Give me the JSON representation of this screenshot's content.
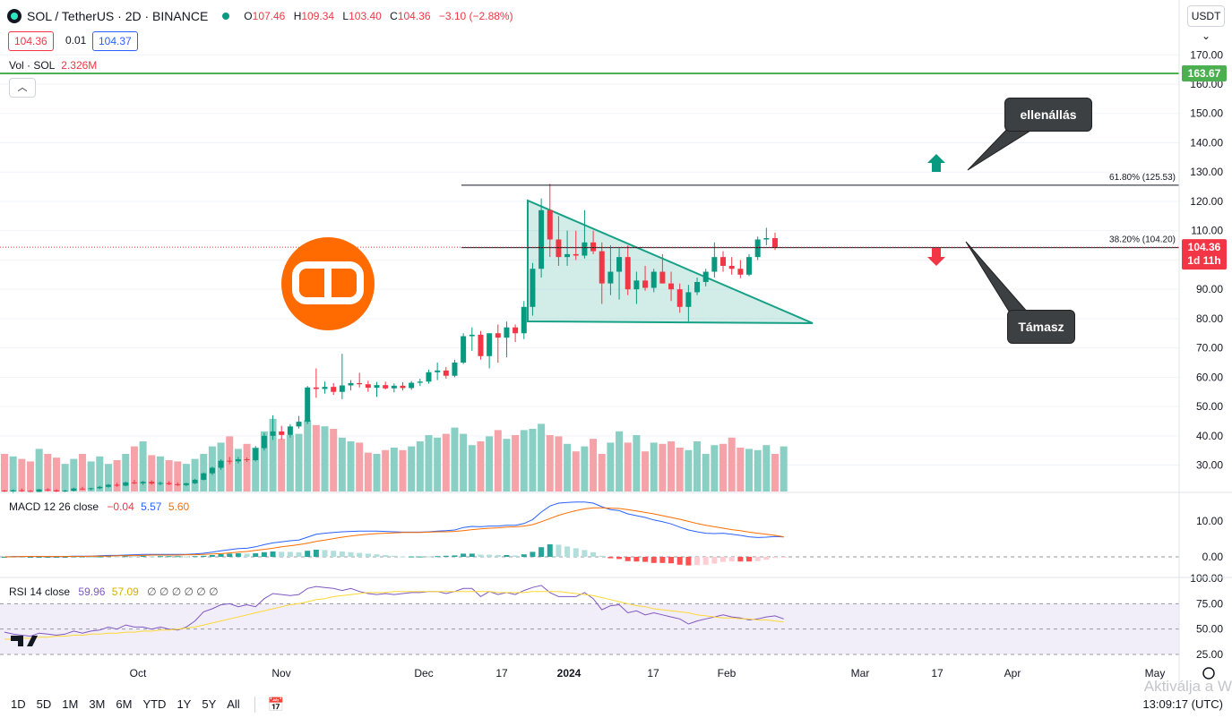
{
  "header": {
    "symbol": "SOL / TetherUS · 2D · BINANCE",
    "o_label": "O",
    "o_value": "107.46",
    "h_label": "H",
    "h_value": "109.34",
    "l_label": "L",
    "l_value": "103.40",
    "c_label": "C",
    "c_value": "104.36",
    "change": "−3.10 (−2.88%)",
    "bid": "104.36",
    "spread": "0.01",
    "ask": "104.37",
    "currency_button": "USDT",
    "vol_label": "Vol · SOL",
    "vol_value": "2.326M"
  },
  "macd_legend": {
    "label": "MACD 12 26 close",
    "hist": "−0.04",
    "macd": "5.57",
    "signal": "5.60"
  },
  "rsi_legend": {
    "label": "RSI 14 close",
    "rsi": "59.96",
    "ma": "57.09",
    "extra": "∅ ∅ ∅ ∅ ∅ ∅"
  },
  "annotations": {
    "resistance": "ellenállás",
    "support": "Támasz",
    "fib_618": "61.80% (125.53)",
    "fib_382": "38.20% (104.20)",
    "h_line_label": "163.67",
    "last_price": "104.36",
    "countdown": "1d 11h"
  },
  "bottom_bar": {
    "timeframes": [
      "1D",
      "5D",
      "1M",
      "3M",
      "6M",
      "YTD",
      "1Y",
      "5Y",
      "All"
    ],
    "clock": "13:09:17 (UTC)",
    "watermark": "Aktiválja a W"
  },
  "colors": {
    "up": "#089981",
    "down": "#f23645",
    "macd": "#2962ff",
    "signal": "#ff6d00",
    "rsi": "#7e57c2",
    "rsi_ma": "#fdd835",
    "hline": "#4caf50"
  },
  "chart_data": [
    {
      "type": "candlestick",
      "title": "SOL / TetherUS · 2D · BINANCE",
      "y_axis_ticks": [
        170,
        160,
        150,
        140,
        130,
        120,
        110,
        100,
        90,
        80,
        70,
        60,
        50,
        40,
        30
      ],
      "ylim": [
        22,
        173
      ],
      "x_tick_labels": [
        "Oct",
        "Nov",
        "Dec",
        "17",
        "2024",
        "17",
        "Feb",
        "Mar",
        "17",
        "Apr",
        "May"
      ],
      "candles": [
        {
          "o": 21.3,
          "h": 21.6,
          "l": 20.6,
          "c": 21.0
        },
        {
          "o": 21.0,
          "h": 21.7,
          "l": 20.4,
          "c": 21.4
        },
        {
          "o": 21.4,
          "h": 22.0,
          "l": 20.9,
          "c": 21.2
        },
        {
          "o": 21.2,
          "h": 21.5,
          "l": 20.5,
          "c": 20.9
        },
        {
          "o": 20.9,
          "h": 21.9,
          "l": 20.7,
          "c": 21.7
        },
        {
          "o": 21.7,
          "h": 22.1,
          "l": 21.1,
          "c": 21.4
        },
        {
          "o": 21.4,
          "h": 21.8,
          "l": 20.8,
          "c": 21.0
        },
        {
          "o": 21.0,
          "h": 21.6,
          "l": 20.7,
          "c": 21.3
        },
        {
          "o": 21.3,
          "h": 22.3,
          "l": 21.0,
          "c": 22.0
        },
        {
          "o": 22.0,
          "h": 22.6,
          "l": 21.5,
          "c": 21.8
        },
        {
          "o": 21.8,
          "h": 22.3,
          "l": 21.4,
          "c": 22.1
        },
        {
          "o": 22.1,
          "h": 22.9,
          "l": 21.8,
          "c": 22.6
        },
        {
          "o": 22.6,
          "h": 23.6,
          "l": 22.3,
          "c": 23.3
        },
        {
          "o": 23.3,
          "h": 24.0,
          "l": 22.6,
          "c": 23.0
        },
        {
          "o": 23.0,
          "h": 24.4,
          "l": 22.8,
          "c": 24.1
        },
        {
          "o": 24.1,
          "h": 25.0,
          "l": 23.5,
          "c": 23.8
        },
        {
          "o": 23.8,
          "h": 24.6,
          "l": 23.2,
          "c": 24.3
        },
        {
          "o": 24.3,
          "h": 24.8,
          "l": 23.3,
          "c": 23.7
        },
        {
          "o": 23.7,
          "h": 24.4,
          "l": 23.1,
          "c": 23.9
        },
        {
          "o": 23.9,
          "h": 24.5,
          "l": 23.2,
          "c": 23.5
        },
        {
          "o": 23.5,
          "h": 24.1,
          "l": 22.9,
          "c": 23.2
        },
        {
          "o": 23.2,
          "h": 24.0,
          "l": 22.8,
          "c": 23.8
        },
        {
          "o": 23.8,
          "h": 25.3,
          "l": 23.5,
          "c": 25.0
        },
        {
          "o": 25.0,
          "h": 27.5,
          "l": 24.8,
          "c": 27.2
        },
        {
          "o": 27.2,
          "h": 29.5,
          "l": 26.6,
          "c": 29.1
        },
        {
          "o": 29.1,
          "h": 32.0,
          "l": 28.4,
          "c": 31.5
        },
        {
          "o": 31.5,
          "h": 32.8,
          "l": 30.3,
          "c": 31.3
        },
        {
          "o": 31.3,
          "h": 32.8,
          "l": 30.6,
          "c": 32.0
        },
        {
          "o": 32.0,
          "h": 32.6,
          "l": 31.1,
          "c": 31.7
        },
        {
          "o": 31.7,
          "h": 36.5,
          "l": 31.3,
          "c": 35.8
        },
        {
          "o": 35.8,
          "h": 41.0,
          "l": 35.0,
          "c": 40.0
        },
        {
          "o": 40.0,
          "h": 47.0,
          "l": 38.6,
          "c": 41.5
        },
        {
          "o": 41.5,
          "h": 43.4,
          "l": 38.7,
          "c": 40.3
        },
        {
          "o": 40.3,
          "h": 44.0,
          "l": 39.4,
          "c": 43.2
        },
        {
          "o": 43.2,
          "h": 46.8,
          "l": 42.5,
          "c": 44.8
        },
        {
          "o": 44.8,
          "h": 57.0,
          "l": 44.0,
          "c": 56.5
        },
        {
          "o": 56.5,
          "h": 63.0,
          "l": 53.0,
          "c": 56.0
        },
        {
          "o": 56.0,
          "h": 58.5,
          "l": 54.4,
          "c": 56.7
        },
        {
          "o": 56.7,
          "h": 58.0,
          "l": 54.0,
          "c": 55.0
        },
        {
          "o": 55.0,
          "h": 68.0,
          "l": 52.5,
          "c": 57.2
        },
        {
          "o": 57.2,
          "h": 59.0,
          "l": 55.5,
          "c": 58.0
        },
        {
          "o": 58.0,
          "h": 61.5,
          "l": 56.5,
          "c": 57.6
        },
        {
          "o": 57.6,
          "h": 58.8,
          "l": 55.0,
          "c": 56.4
        },
        {
          "o": 56.4,
          "h": 58.4,
          "l": 53.3,
          "c": 57.3
        },
        {
          "o": 57.3,
          "h": 58.5,
          "l": 55.8,
          "c": 56.2
        },
        {
          "o": 56.2,
          "h": 57.9,
          "l": 54.8,
          "c": 57.1
        },
        {
          "o": 57.1,
          "h": 58.3,
          "l": 55.5,
          "c": 56.3
        },
        {
          "o": 56.3,
          "h": 58.7,
          "l": 55.7,
          "c": 58.1
        },
        {
          "o": 58.1,
          "h": 59.5,
          "l": 57.0,
          "c": 58.5
        },
        {
          "o": 58.5,
          "h": 62.6,
          "l": 57.8,
          "c": 61.7
        },
        {
          "o": 61.7,
          "h": 65.0,
          "l": 59.0,
          "c": 62.3
        },
        {
          "o": 62.3,
          "h": 63.5,
          "l": 59.5,
          "c": 60.5
        },
        {
          "o": 60.5,
          "h": 66.0,
          "l": 60.0,
          "c": 65.0
        },
        {
          "o": 65.0,
          "h": 75.0,
          "l": 64.5,
          "c": 74.0
        },
        {
          "o": 74.0,
          "h": 77.0,
          "l": 69.0,
          "c": 74.5
        },
        {
          "o": 74.5,
          "h": 75.8,
          "l": 66.0,
          "c": 67.2
        },
        {
          "o": 67.2,
          "h": 75.0,
          "l": 63.0,
          "c": 75.0
        },
        {
          "o": 75.0,
          "h": 78.0,
          "l": 65.0,
          "c": 73.5
        },
        {
          "o": 73.5,
          "h": 79.0,
          "l": 66.8,
          "c": 77.0
        },
        {
          "o": 77.0,
          "h": 78.0,
          "l": 72.0,
          "c": 75.0
        },
        {
          "o": 75.0,
          "h": 86.0,
          "l": 73.0,
          "c": 84.0
        },
        {
          "o": 84.0,
          "h": 99.0,
          "l": 81.0,
          "c": 97.0
        },
        {
          "o": 97.0,
          "h": 121.0,
          "l": 94.0,
          "c": 117.0
        },
        {
          "o": 117.0,
          "h": 126.0,
          "l": 101.0,
          "c": 107.0
        },
        {
          "o": 107.0,
          "h": 115.0,
          "l": 98.0,
          "c": 101.0
        },
        {
          "o": 101.0,
          "h": 110.0,
          "l": 98.0,
          "c": 102.0
        },
        {
          "o": 102.0,
          "h": 110.0,
          "l": 100.0,
          "c": 101.5
        },
        {
          "o": 101.5,
          "h": 117.0,
          "l": 100.5,
          "c": 106.0
        },
        {
          "o": 106.0,
          "h": 110.0,
          "l": 102.0,
          "c": 103.0
        },
        {
          "o": 103.0,
          "h": 106.0,
          "l": 85.0,
          "c": 92.0
        },
        {
          "o": 92.0,
          "h": 105.0,
          "l": 88.0,
          "c": 96.0
        },
        {
          "o": 96.0,
          "h": 104.0,
          "l": 86.5,
          "c": 101.0
        },
        {
          "o": 101.0,
          "h": 105.0,
          "l": 88.0,
          "c": 90.0
        },
        {
          "o": 90.0,
          "h": 96.0,
          "l": 85.0,
          "c": 93.0
        },
        {
          "o": 93.0,
          "h": 98.0,
          "l": 89.5,
          "c": 90.5
        },
        {
          "o": 90.5,
          "h": 97.0,
          "l": 89.0,
          "c": 96.0
        },
        {
          "o": 96.0,
          "h": 102.0,
          "l": 93.0,
          "c": 92.0
        },
        {
          "o": 92.0,
          "h": 96.0,
          "l": 86.0,
          "c": 90.0
        },
        {
          "o": 90.0,
          "h": 92.0,
          "l": 82.0,
          "c": 84.0
        },
        {
          "o": 84.0,
          "h": 91.5,
          "l": 79.0,
          "c": 89.0
        },
        {
          "o": 89.0,
          "h": 94.0,
          "l": 88.0,
          "c": 92.5
        },
        {
          "o": 92.5,
          "h": 97.0,
          "l": 91.0,
          "c": 96.0
        },
        {
          "o": 96.0,
          "h": 106.0,
          "l": 94.0,
          "c": 101.0
        },
        {
          "o": 101.0,
          "h": 103.0,
          "l": 96.0,
          "c": 98.0
        },
        {
          "o": 98.0,
          "h": 101.0,
          "l": 95.0,
          "c": 97.0
        },
        {
          "o": 97.0,
          "h": 100.0,
          "l": 93.8,
          "c": 95.0
        },
        {
          "o": 95.0,
          "h": 102.0,
          "l": 94.5,
          "c": 101.0
        },
        {
          "o": 101.0,
          "h": 108.0,
          "l": 100.0,
          "c": 107.0
        },
        {
          "o": 107.0,
          "h": 111.0,
          "l": 105.0,
          "c": 107.46
        },
        {
          "o": 107.46,
          "h": 109.34,
          "l": 103.4,
          "c": 104.36
        }
      ]
    },
    {
      "type": "bar",
      "title": "Vol · SOL",
      "values": [
        30,
        28,
        26,
        24,
        34,
        30,
        27,
        22,
        26,
        30,
        24,
        28,
        22,
        25,
        30,
        36,
        40,
        29,
        28,
        25,
        24,
        22,
        26,
        30,
        36,
        39,
        44,
        34,
        38,
        35,
        48,
        58,
        42,
        45,
        46,
        57,
        53,
        52,
        50,
        43,
        40,
        39,
        31,
        30,
        33,
        35,
        33,
        36,
        40,
        45,
        43,
        46,
        51,
        46,
        37,
        40,
        44,
        49,
        42,
        45,
        49,
        50,
        54,
        45,
        44,
        38,
        32,
        36,
        42,
        30,
        39,
        48,
        39,
        45,
        32,
        39,
        38,
        40,
        35,
        33,
        40,
        30,
        37,
        38,
        43,
        35,
        34,
        33,
        37,
        30,
        36
      ],
      "ylim": [
        0,
        100
      ]
    },
    {
      "type": "line",
      "title": "MACD 12 26 close",
      "y_axis_ticks": [
        10.0,
        0.0
      ],
      "series": [
        {
          "name": "MACD",
          "values": [
            0,
            0.1,
            0.1,
            0.1,
            0.1,
            0.1,
            0.1,
            0.1,
            0.2,
            0.2,
            0.2,
            0.3,
            0.4,
            0.4,
            0.5,
            0.6,
            0.7,
            0.7,
            0.7,
            0.7,
            0.7,
            0.7,
            0.8,
            1.0,
            1.3,
            1.7,
            2.0,
            2.3,
            2.4,
            2.8,
            3.4,
            3.9,
            4.2,
            4.5,
            4.7,
            5.5,
            6.3,
            6.6,
            6.8,
            7.0,
            7.1,
            7.2,
            7.2,
            7.2,
            7.1,
            7.0,
            6.9,
            6.9,
            6.9,
            7.0,
            7.2,
            7.3,
            7.5,
            8.2,
            8.5,
            8.4,
            8.6,
            8.6,
            8.8,
            8.8,
            9.3,
            10.4,
            12.5,
            14.2,
            15.0,
            15.2,
            15.3,
            15.3,
            15.0,
            14.0,
            13.2,
            12.9,
            12.0,
            11.5,
            11.0,
            10.3,
            9.8,
            9.2,
            8.3,
            7.5,
            7.0,
            6.6,
            6.5,
            6.6,
            6.3,
            6.0,
            5.6,
            5.4,
            5.5,
            5.7,
            5.57
          ]
        },
        {
          "name": "Signal",
          "values": [
            0,
            0,
            0.1,
            0.1,
            0.1,
            0.1,
            0.1,
            0.1,
            0.1,
            0.1,
            0.2,
            0.2,
            0.2,
            0.3,
            0.3,
            0.4,
            0.4,
            0.5,
            0.5,
            0.5,
            0.5,
            0.6,
            0.6,
            0.7,
            0.8,
            0.9,
            1.1,
            1.3,
            1.5,
            1.8,
            2.1,
            2.4,
            2.8,
            3.1,
            3.4,
            3.8,
            4.3,
            4.7,
            5.1,
            5.5,
            5.8,
            6.1,
            6.3,
            6.5,
            6.6,
            6.7,
            6.8,
            6.8,
            6.8,
            6.9,
            7.0,
            7.0,
            7.1,
            7.3,
            7.6,
            7.8,
            8.0,
            8.1,
            8.3,
            8.4,
            8.6,
            9.0,
            9.8,
            10.7,
            11.6,
            12.3,
            12.9,
            13.4,
            13.7,
            13.7,
            13.6,
            13.5,
            13.2,
            12.8,
            12.4,
            12.0,
            11.5,
            11.0,
            10.5,
            9.9,
            9.3,
            8.8,
            8.4,
            8.0,
            7.6,
            7.3,
            6.9,
            6.6,
            6.3,
            6.0,
            5.6
          ]
        }
      ]
    },
    {
      "type": "line",
      "title": "RSI 14 close",
      "y_axis_ticks": [
        100.0,
        75.0,
        50.0,
        25.0
      ],
      "ylim": [
        25,
        100
      ],
      "series": [
        {
          "name": "RSI",
          "values": [
            47,
            45,
            44,
            43,
            46,
            45,
            44,
            45,
            48,
            46,
            48,
            49,
            52,
            50,
            54,
            52,
            52,
            50,
            52,
            50,
            49,
            52,
            58,
            67,
            70,
            74,
            75,
            72,
            74,
            72,
            80,
            85,
            84,
            83,
            84,
            90,
            92,
            91,
            90,
            88,
            90,
            87,
            85,
            84,
            85,
            84,
            85,
            86,
            86,
            87,
            87,
            85,
            87,
            90,
            90,
            82,
            87,
            84,
            86,
            84,
            88,
            91,
            93,
            86,
            82,
            82,
            82,
            86,
            80,
            69,
            73,
            74,
            66,
            68,
            64,
            66,
            64,
            62,
            60,
            55,
            58,
            60,
            62,
            64,
            62,
            61,
            59,
            60,
            62,
            63,
            60
          ]
        },
        {
          "name": "RSI MA",
          "values": [
            40,
            40,
            41,
            41,
            42,
            42,
            43,
            43,
            44,
            44,
            45,
            45,
            46,
            46,
            47,
            47,
            48,
            48,
            49,
            49,
            50,
            51,
            52,
            54,
            56,
            58,
            60,
            62,
            64,
            66,
            68,
            70,
            72,
            74,
            75,
            77,
            79,
            80,
            82,
            83,
            84,
            85,
            86,
            86,
            86,
            87,
            87,
            87,
            87,
            87,
            87,
            87,
            87,
            87,
            87,
            87,
            87,
            86,
            86,
            86,
            86,
            87,
            87,
            87,
            87,
            86,
            85,
            84,
            83,
            81,
            79,
            77,
            75,
            73,
            72,
            70,
            69,
            68,
            67,
            66,
            64,
            63,
            62,
            61,
            61,
            60,
            60,
            59,
            59,
            58,
            57
          ]
        }
      ]
    }
  ]
}
